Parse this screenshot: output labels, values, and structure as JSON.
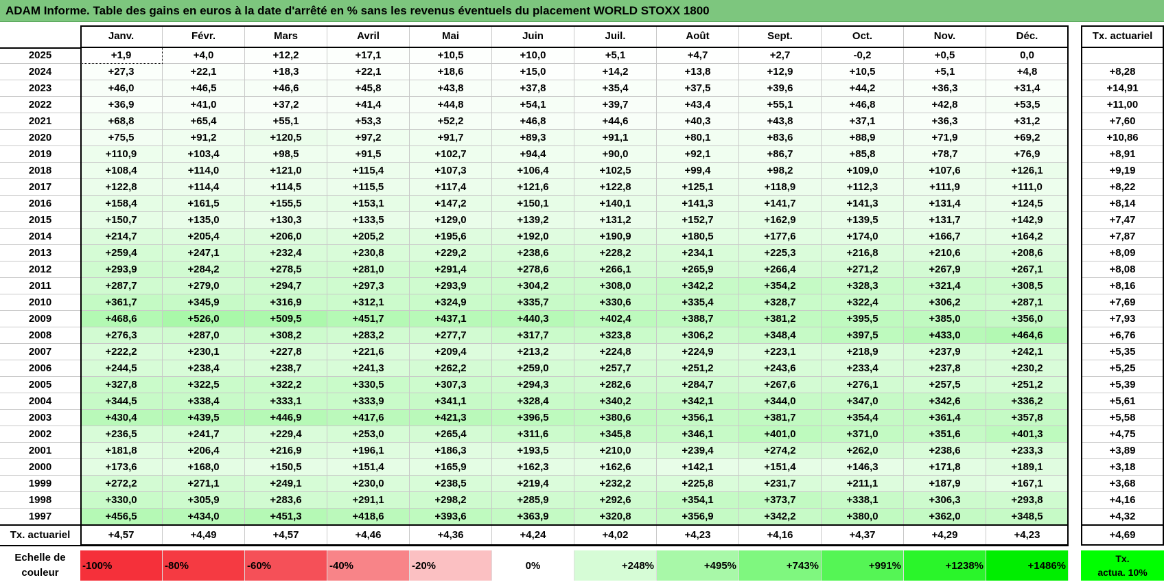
{
  "title": "ADAM Informe. Table des gains en euros à la date d'arrêté en % sans les revenus éventuels du placement WORLD STOXX 1800",
  "months": [
    "Janv.",
    "Févr.",
    "Mars",
    "Avril",
    "Mai",
    "Juin",
    "Juil.",
    "Août",
    "Sept.",
    "Oct.",
    "Nov.",
    "Déc."
  ],
  "tx_header": "Tx. actuariel",
  "rows": [
    {
      "year": "2025",
      "values": [
        "+1,9",
        "+4,0",
        "+12,2",
        "+17,1",
        "+10,5",
        "+10,0",
        "+5,1",
        "+4,7",
        "+2,7",
        "-0,2",
        "+0,5",
        "0,0"
      ],
      "tx": ""
    },
    {
      "year": "2024",
      "values": [
        "+27,3",
        "+22,1",
        "+18,3",
        "+22,1",
        "+18,6",
        "+15,0",
        "+14,2",
        "+13,8",
        "+12,9",
        "+10,5",
        "+5,1",
        "+4,8"
      ],
      "tx": "+8,28"
    },
    {
      "year": "2023",
      "values": [
        "+46,0",
        "+46,5",
        "+46,6",
        "+45,8",
        "+43,8",
        "+37,8",
        "+35,4",
        "+37,5",
        "+39,6",
        "+44,2",
        "+36,3",
        "+31,4"
      ],
      "tx": "+14,91"
    },
    {
      "year": "2022",
      "values": [
        "+36,9",
        "+41,0",
        "+37,2",
        "+41,4",
        "+44,8",
        "+54,1",
        "+39,7",
        "+43,4",
        "+55,1",
        "+46,8",
        "+42,8",
        "+53,5"
      ],
      "tx": "+11,00"
    },
    {
      "year": "2021",
      "values": [
        "+68,8",
        "+65,4",
        "+55,1",
        "+53,3",
        "+52,2",
        "+46,8",
        "+44,6",
        "+40,3",
        "+43,8",
        "+37,1",
        "+36,3",
        "+31,2"
      ],
      "tx": "+7,60"
    },
    {
      "year": "2020",
      "values": [
        "+75,5",
        "+91,2",
        "+120,5",
        "+97,2",
        "+91,7",
        "+89,3",
        "+91,1",
        "+80,1",
        "+83,6",
        "+88,9",
        "+71,9",
        "+69,2"
      ],
      "tx": "+10,86"
    },
    {
      "year": "2019",
      "values": [
        "+110,9",
        "+103,4",
        "+98,5",
        "+91,5",
        "+102,7",
        "+94,4",
        "+90,0",
        "+92,1",
        "+86,7",
        "+85,8",
        "+78,7",
        "+76,9"
      ],
      "tx": "+8,91"
    },
    {
      "year": "2018",
      "values": [
        "+108,4",
        "+114,0",
        "+121,0",
        "+115,4",
        "+107,3",
        "+106,4",
        "+102,5",
        "+99,4",
        "+98,2",
        "+109,0",
        "+107,6",
        "+126,1"
      ],
      "tx": "+9,19"
    },
    {
      "year": "2017",
      "values": [
        "+122,8",
        "+114,4",
        "+114,5",
        "+115,5",
        "+117,4",
        "+121,6",
        "+122,8",
        "+125,1",
        "+118,9",
        "+112,3",
        "+111,9",
        "+111,0"
      ],
      "tx": "+8,22"
    },
    {
      "year": "2016",
      "values": [
        "+158,4",
        "+161,5",
        "+155,5",
        "+153,1",
        "+147,2",
        "+150,1",
        "+140,1",
        "+141,3",
        "+141,7",
        "+141,3",
        "+131,4",
        "+124,5"
      ],
      "tx": "+8,14"
    },
    {
      "year": "2015",
      "values": [
        "+150,7",
        "+135,0",
        "+130,3",
        "+133,5",
        "+129,0",
        "+139,2",
        "+131,2",
        "+152,7",
        "+162,9",
        "+139,5",
        "+131,7",
        "+142,9"
      ],
      "tx": "+7,47"
    },
    {
      "year": "2014",
      "values": [
        "+214,7",
        "+205,4",
        "+206,0",
        "+205,2",
        "+195,6",
        "+192,0",
        "+190,9",
        "+180,5",
        "+177,6",
        "+174,0",
        "+166,7",
        "+164,2"
      ],
      "tx": "+7,87"
    },
    {
      "year": "2013",
      "values": [
        "+259,4",
        "+247,1",
        "+232,4",
        "+230,8",
        "+229,2",
        "+238,6",
        "+228,2",
        "+234,1",
        "+225,3",
        "+216,8",
        "+210,6",
        "+208,6"
      ],
      "tx": "+8,09"
    },
    {
      "year": "2012",
      "values": [
        "+293,9",
        "+284,2",
        "+278,5",
        "+281,0",
        "+291,4",
        "+278,6",
        "+266,1",
        "+265,9",
        "+266,4",
        "+271,2",
        "+267,9",
        "+267,1"
      ],
      "tx": "+8,08"
    },
    {
      "year": "2011",
      "values": [
        "+287,7",
        "+279,0",
        "+294,7",
        "+297,3",
        "+293,9",
        "+304,2",
        "+308,0",
        "+342,2",
        "+354,2",
        "+328,3",
        "+321,4",
        "+308,5"
      ],
      "tx": "+8,16"
    },
    {
      "year": "2010",
      "values": [
        "+361,7",
        "+345,9",
        "+316,9",
        "+312,1",
        "+324,9",
        "+335,7",
        "+330,6",
        "+335,4",
        "+328,7",
        "+322,4",
        "+306,2",
        "+287,1"
      ],
      "tx": "+7,69"
    },
    {
      "year": "2009",
      "values": [
        "+468,6",
        "+526,0",
        "+509,5",
        "+451,7",
        "+437,1",
        "+440,3",
        "+402,4",
        "+388,7",
        "+381,2",
        "+395,5",
        "+385,0",
        "+356,0"
      ],
      "tx": "+7,93"
    },
    {
      "year": "2008",
      "values": [
        "+276,3",
        "+287,0",
        "+308,2",
        "+283,2",
        "+277,7",
        "+317,7",
        "+323,8",
        "+306,2",
        "+348,4",
        "+397,5",
        "+433,0",
        "+464,6"
      ],
      "tx": "+6,76"
    },
    {
      "year": "2007",
      "values": [
        "+222,2",
        "+230,1",
        "+227,8",
        "+221,6",
        "+209,4",
        "+213,2",
        "+224,8",
        "+224,9",
        "+223,1",
        "+218,9",
        "+237,9",
        "+242,1"
      ],
      "tx": "+5,35"
    },
    {
      "year": "2006",
      "values": [
        "+244,5",
        "+238,4",
        "+238,7",
        "+241,3",
        "+262,2",
        "+259,0",
        "+257,7",
        "+251,2",
        "+243,6",
        "+233,4",
        "+237,8",
        "+230,2"
      ],
      "tx": "+5,25"
    },
    {
      "year": "2005",
      "values": [
        "+327,8",
        "+322,5",
        "+322,2",
        "+330,5",
        "+307,3",
        "+294,3",
        "+282,6",
        "+284,7",
        "+267,6",
        "+276,1",
        "+257,5",
        "+251,2"
      ],
      "tx": "+5,39"
    },
    {
      "year": "2004",
      "values": [
        "+344,5",
        "+338,4",
        "+333,1",
        "+333,9",
        "+341,1",
        "+328,4",
        "+340,2",
        "+342,1",
        "+344,0",
        "+347,0",
        "+342,6",
        "+336,2"
      ],
      "tx": "+5,61"
    },
    {
      "year": "2003",
      "values": [
        "+430,4",
        "+439,5",
        "+446,9",
        "+417,6",
        "+421,3",
        "+396,5",
        "+380,6",
        "+356,1",
        "+381,7",
        "+354,4",
        "+361,4",
        "+357,8"
      ],
      "tx": "+5,58"
    },
    {
      "year": "2002",
      "values": [
        "+236,5",
        "+241,7",
        "+229,4",
        "+253,0",
        "+265,4",
        "+311,6",
        "+345,8",
        "+346,1",
        "+401,0",
        "+371,0",
        "+351,6",
        "+401,3"
      ],
      "tx": "+4,75"
    },
    {
      "year": "2001",
      "values": [
        "+181,8",
        "+206,4",
        "+216,9",
        "+196,1",
        "+186,3",
        "+193,5",
        "+210,0",
        "+239,4",
        "+274,2",
        "+262,0",
        "+238,6",
        "+233,3"
      ],
      "tx": "+3,89"
    },
    {
      "year": "2000",
      "values": [
        "+173,6",
        "+168,0",
        "+150,5",
        "+151,4",
        "+165,9",
        "+162,3",
        "+162,6",
        "+142,1",
        "+151,4",
        "+146,3",
        "+171,8",
        "+189,1"
      ],
      "tx": "+3,18"
    },
    {
      "year": "1999",
      "values": [
        "+272,2",
        "+271,1",
        "+249,1",
        "+230,0",
        "+238,5",
        "+219,4",
        "+232,2",
        "+225,8",
        "+231,7",
        "+211,1",
        "+187,9",
        "+167,1"
      ],
      "tx": "+3,68"
    },
    {
      "year": "1998",
      "values": [
        "+330,0",
        "+305,9",
        "+283,6",
        "+291,1",
        "+298,2",
        "+285,9",
        "+292,6",
        "+354,1",
        "+373,7",
        "+338,1",
        "+306,3",
        "+293,8"
      ],
      "tx": "+4,16"
    },
    {
      "year": "1997",
      "values": [
        "+456,5",
        "+434,0",
        "+451,3",
        "+418,6",
        "+393,6",
        "+363,9",
        "+320,8",
        "+356,9",
        "+342,2",
        "+380,0",
        "+362,0",
        "+348,5"
      ],
      "tx": "+4,32"
    }
  ],
  "tx_row": {
    "label": "Tx. actuariel",
    "values": [
      "+4,57",
      "+4,49",
      "+4,57",
      "+4,46",
      "+4,36",
      "+4,24",
      "+4,02",
      "+4,23",
      "+4,16",
      "+4,37",
      "+4,29",
      "+4,23"
    ],
    "tx": "+4,69"
  },
  "scale": {
    "label_line1": "Echelle de",
    "label_line2": "couleur",
    "steps": [
      {
        "label": "-100%",
        "color": "#f5303a"
      },
      {
        "label": "-80%",
        "color": "#f53a42"
      },
      {
        "label": "-60%",
        "color": "#f55058"
      },
      {
        "label": "-40%",
        "color": "#f88488"
      },
      {
        "label": "-20%",
        "color": "#fbc0c2"
      },
      {
        "label": "0%",
        "color": "#ffffff"
      },
      {
        "label": "+248%",
        "color": "#d6fcd6"
      },
      {
        "label": "+495%",
        "color": "#a8f8a8"
      },
      {
        "label": "+743%",
        "color": "#7ff77f"
      },
      {
        "label": "+991%",
        "color": "#55f555"
      },
      {
        "label": "+1238%",
        "color": "#2af52a"
      },
      {
        "label": "+1486%",
        "color": "#00ee00"
      }
    ],
    "tx_line1": "Tx.",
    "tx_line2": "actua. 10%",
    "tx_color": "#00ff00",
    "max_value": 1486
  },
  "colors": {
    "title_bar": "#7dc67e"
  }
}
